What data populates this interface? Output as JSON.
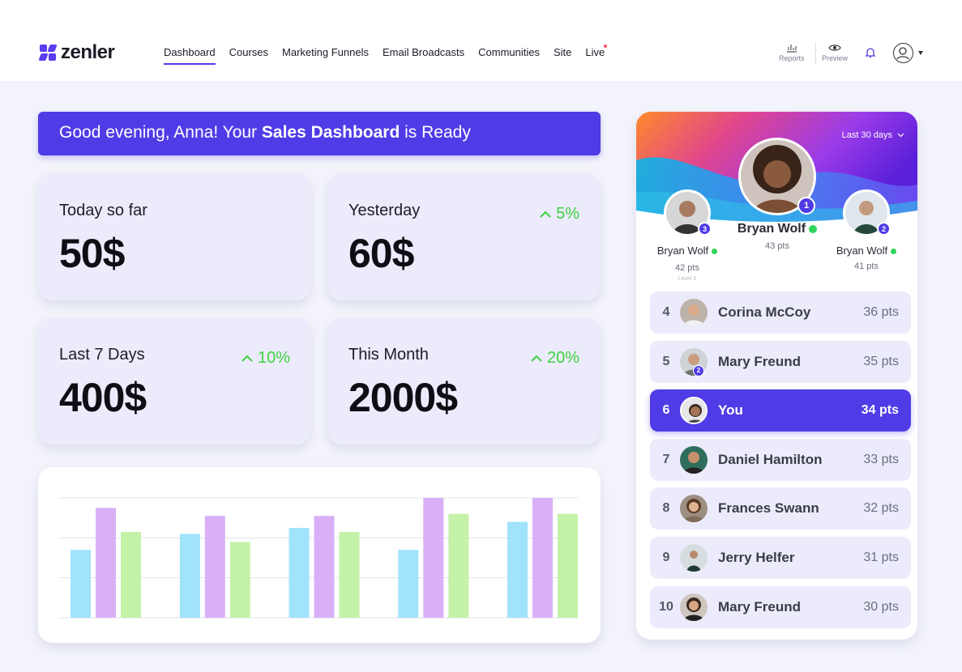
{
  "app": {
    "logo_text": "zenler",
    "brand_color": "#4f3ce6"
  },
  "nav": {
    "items": [
      {
        "label": "Dashboard",
        "active": true
      },
      {
        "label": "Courses"
      },
      {
        "label": "Marketing Funnels"
      },
      {
        "label": "Email Broadcasts"
      },
      {
        "label": "Communities"
      },
      {
        "label": "Site"
      },
      {
        "label": "Live",
        "has_dot": true
      }
    ],
    "tools": {
      "reports": "Reports",
      "preview": "Preview"
    }
  },
  "greeting": {
    "prefix": "Good evening, Anna! Your ",
    "bold": "Sales Dashboard",
    "suffix": " is Ready"
  },
  "stats": {
    "today": {
      "label": "Today so far",
      "value": "50$"
    },
    "yesterday": {
      "label": "Yesterday",
      "value": "60$",
      "delta": "5%"
    },
    "week": {
      "label": "Last 7 Days",
      "value": "400$",
      "delta": "10%"
    },
    "month": {
      "label": "This Month",
      "value": "2000$",
      "delta": "20%"
    }
  },
  "chart_data": {
    "type": "bar",
    "categories": [
      "",
      "",
      "",
      "",
      ""
    ],
    "series": [
      {
        "color": "#a0e3fb",
        "values": [
          17,
          21,
          22.5,
          17,
          24
        ]
      },
      {
        "color": "#d9b0f7",
        "values": [
          27.5,
          25.5,
          25.5,
          30,
          30
        ]
      },
      {
        "color": "#c4f2a8",
        "values": [
          21.5,
          19,
          21.5,
          26,
          26
        ]
      }
    ],
    "ylim": [
      0,
      30
    ],
    "grid": true
  },
  "leaderboard": {
    "period": "Last 30 days",
    "podium": [
      {
        "rank": "1",
        "name": "Bryan Wolf",
        "pts": "43 pts",
        "online": true
      },
      {
        "rank": "3",
        "name": "Bryan Wolf",
        "pts": "42 pts",
        "level": "Level 5",
        "online": true
      },
      {
        "rank": "2",
        "name": "Bryan Wolf",
        "pts": "41 pts",
        "online": true
      }
    ],
    "rows": [
      {
        "rank": "4",
        "name": "Corina McCoy",
        "pts": "36 pts"
      },
      {
        "rank": "5",
        "name": "Mary Freund",
        "pts": "35 pts",
        "badge": "2"
      },
      {
        "rank": "6",
        "name": "You",
        "pts": "34 pts",
        "me": true
      },
      {
        "rank": "7",
        "name": "Daniel Hamilton",
        "pts": "33 pts"
      },
      {
        "rank": "8",
        "name": "Frances Swann",
        "pts": "32 pts"
      },
      {
        "rank": "9",
        "name": "Jerry Helfer",
        "pts": "31 pts"
      },
      {
        "rank": "10",
        "name": "Mary Freund",
        "pts": "30 pts"
      }
    ]
  }
}
